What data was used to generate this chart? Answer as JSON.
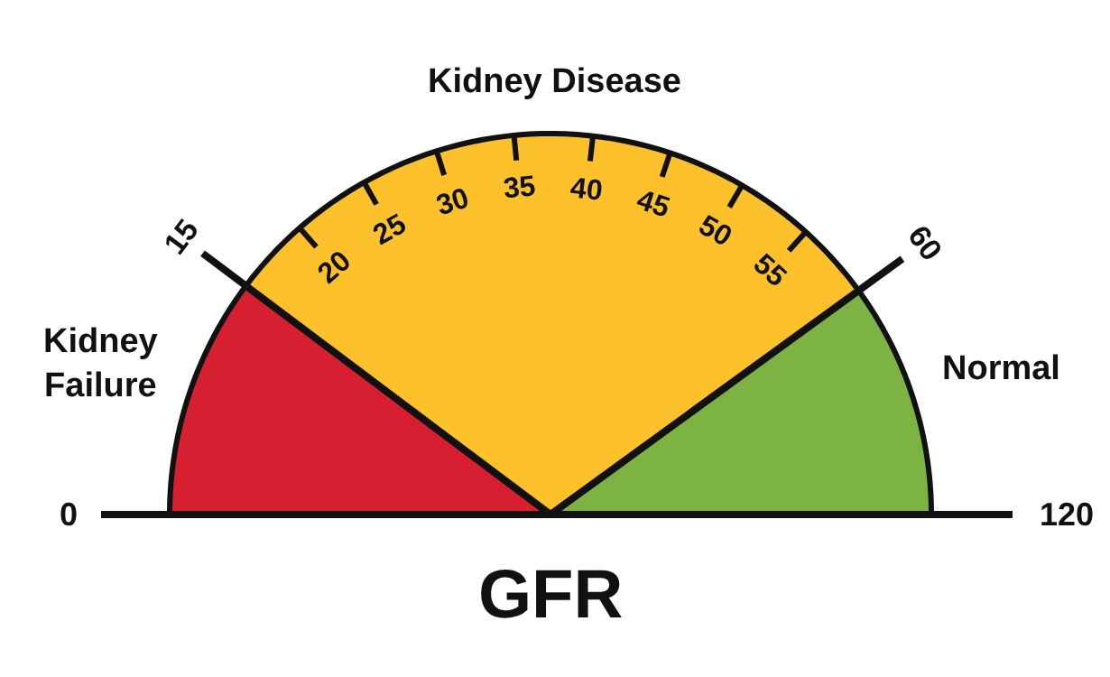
{
  "chart_data": {
    "type": "pie",
    "categories": [
      "Kidney\nFailure",
      "Kidney Disease",
      "Normal"
    ],
    "values": [
      20.5,
      59.5,
      20
    ],
    "colors": [
      "#d71f32",
      "#fdc12c",
      "#7cb342"
    ],
    "xlabel": "GFR",
    "annotations": [
      "0",
      "15",
      "20",
      "25",
      "30",
      "35",
      "40",
      "45",
      "50",
      "55",
      "60",
      "120"
    ],
    "legend": false
  }
}
